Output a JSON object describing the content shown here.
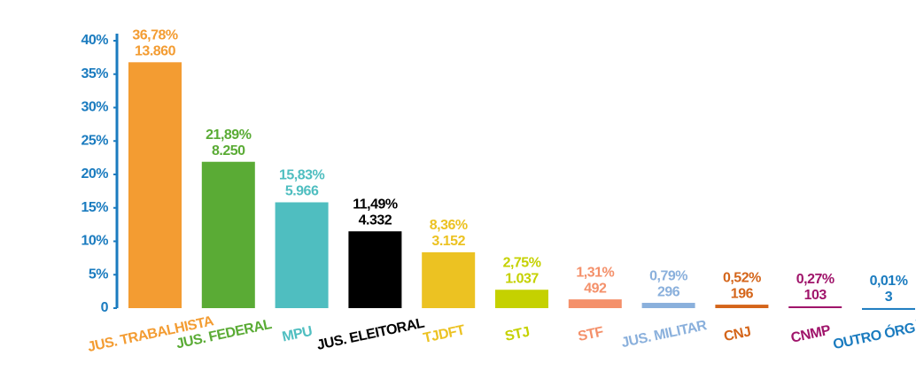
{
  "chart_data": {
    "type": "bar",
    "categories": [
      "JUS. TRABALHISTA",
      "JUS. FEDERAL",
      "MPU",
      "JUS. ELEITORAL",
      "TJDFT",
      "STJ",
      "STF",
      "JUS. MILITAR",
      "CNJ",
      "CNMP",
      "OUTRO ÓRGÃO"
    ],
    "values": [
      36.78,
      21.89,
      15.83,
      11.49,
      8.36,
      2.75,
      1.31,
      0.79,
      0.52,
      0.27,
      0.01
    ],
    "value_labels": [
      "36,78%",
      "21,89%",
      "15,83%",
      "11,49%",
      "8,36%",
      "2,75%",
      "1,31%",
      "0,79%",
      "0,52%",
      "0,27%",
      "0,01%"
    ],
    "count_labels": [
      "13.860",
      "8.250",
      "5.966",
      "4.332",
      "3.152",
      "1.037",
      "492",
      "296",
      "196",
      "103",
      "3"
    ],
    "colors": [
      "#f39c32",
      "#5aab35",
      "#4fbec0",
      "#000000",
      "#ecc222",
      "#c5d100",
      "#f4906a",
      "#8ab0dc",
      "#d4651a",
      "#a0156b",
      "#1a7bbf"
    ],
    "axis_color": "#1a7bbf",
    "ylim": [
      0,
      40
    ],
    "yticks": [
      0,
      {
        "value": 5,
        "label": "5%"
      },
      {
        "value": 10,
        "label": "10%"
      },
      {
        "value": 15,
        "label": "15%"
      },
      {
        "value": 20,
        "label": "20%"
      },
      {
        "value": 25,
        "label": "25%"
      },
      {
        "value": 30,
        "label": "30%"
      },
      {
        "value": 35,
        "label": "35%"
      },
      {
        "value": 40,
        "label": "40%"
      }
    ],
    "grid": false
  }
}
